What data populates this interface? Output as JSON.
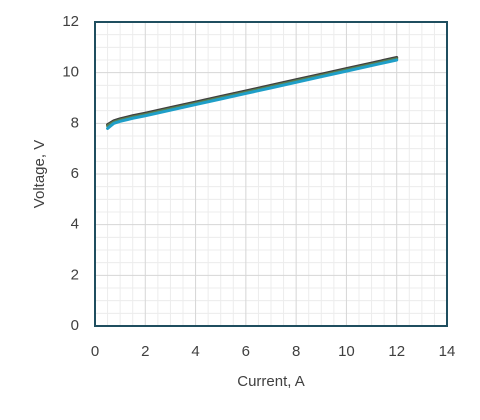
{
  "chart_data": {
    "type": "line",
    "x_label": "Current, A",
    "y_label": "Voltage, V",
    "x": [
      0.5,
      0.75,
      1,
      1.5,
      2,
      3,
      4,
      5,
      6,
      7,
      8,
      9,
      10,
      11,
      12
    ],
    "series": [
      {
        "color": "#3f3f3f",
        "values": [
          7.95,
          8.1,
          8.18,
          8.3,
          8.4,
          8.62,
          8.84,
          9.06,
          9.28,
          9.5,
          9.72,
          9.94,
          10.16,
          10.38,
          10.6
        ]
      },
      {
        "color": "#5a7d4e",
        "values": [
          7.9,
          8.05,
          8.13,
          8.25,
          8.35,
          8.57,
          8.79,
          9.01,
          9.23,
          9.45,
          9.67,
          9.89,
          10.11,
          10.33,
          10.55
        ]
      },
      {
        "color": "#1f9fc8",
        "values": [
          7.8,
          8.0,
          8.08,
          8.2,
          8.3,
          8.52,
          8.74,
          8.96,
          9.18,
          9.4,
          9.62,
          9.84,
          10.06,
          10.28,
          10.5
        ]
      }
    ],
    "xlim": [
      0,
      14
    ],
    "xticks": [
      0,
      2,
      4,
      6,
      8,
      10,
      12,
      14
    ],
    "ylim": [
      0,
      12
    ],
    "yticks": [
      0,
      2,
      4,
      6,
      8,
      10,
      12
    ],
    "grid": true
  }
}
